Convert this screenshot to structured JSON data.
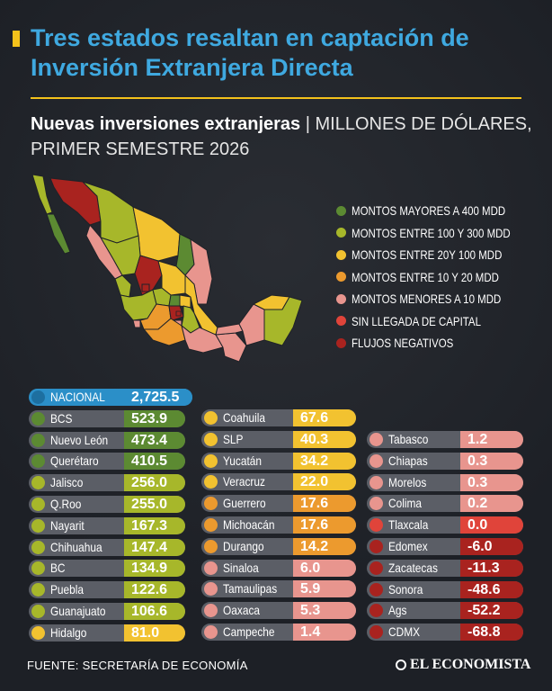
{
  "title": "Tres estados resaltan en captación de Inversión Extranjera Directa",
  "subtitle_bold": "Nuevas inversiones extranjeras",
  "subtitle_separator": " | ",
  "subtitle_light": "MILLONES DE DÓLARES, PRIMER SEMESTRE 2026",
  "legend": [
    {
      "label": "MONTOS MAYORES A 400 MDD",
      "color": "#5c8a32"
    },
    {
      "label": "MONTOS ENTRE 100 Y 300 MDD",
      "color": "#a7b72a"
    },
    {
      "label": "MONTOS ENTRE 20Y 100 MDD",
      "color": "#f2c230"
    },
    {
      "label": "MONTOS ENTRE 10 Y 20 MDD",
      "color": "#ec9a2e"
    },
    {
      "label": "MONTOS MENORES A 10 MDD",
      "color": "#e8958e"
    },
    {
      "label": "SIN LLEGADA DE CAPITAL",
      "color": "#e0443a"
    },
    {
      "label": "FLUJOS NEGATIVOS",
      "color": "#a9231f"
    }
  ],
  "chart_data": {
    "type": "table",
    "unit": "MILLONES DE DÓLARES",
    "national": {
      "name": "NACIONAL",
      "value": "2,725.5",
      "color": "#2b8fc8"
    },
    "rows": [
      {
        "name": "BCS",
        "value": "523.9",
        "color": "#5c8a32"
      },
      {
        "name": "Nuevo León",
        "value": "473.4",
        "color": "#5c8a32"
      },
      {
        "name": "Querétaro",
        "value": "410.5",
        "color": "#5c8a32"
      },
      {
        "name": "Jalisco",
        "value": "256.0",
        "color": "#a7b72a"
      },
      {
        "name": "Q.Roo",
        "value": "255.0",
        "color": "#a7b72a"
      },
      {
        "name": "Nayarit",
        "value": "167.3",
        "color": "#a7b72a"
      },
      {
        "name": "Chihuahua",
        "value": "147.4",
        "color": "#a7b72a"
      },
      {
        "name": "BC",
        "value": "134.9",
        "color": "#a7b72a"
      },
      {
        "name": "Puebla",
        "value": "122.6",
        "color": "#a7b72a"
      },
      {
        "name": "Guanajuato",
        "value": "106.6",
        "color": "#a7b72a"
      },
      {
        "name": "Hidalgo",
        "value": "81.0",
        "color": "#f2c230"
      },
      {
        "name": "Coahuila",
        "value": "67.6",
        "color": "#f2c230"
      },
      {
        "name": "SLP",
        "value": "40.3",
        "color": "#f2c230"
      },
      {
        "name": "Yucatán",
        "value": "34.2",
        "color": "#f2c230"
      },
      {
        "name": "Veracruz",
        "value": "22.0",
        "color": "#f2c230"
      },
      {
        "name": "Guerrero",
        "value": "17.6",
        "color": "#ec9a2e"
      },
      {
        "name": "Michoacán",
        "value": "17.6",
        "color": "#ec9a2e"
      },
      {
        "name": "Durango",
        "value": "14.2",
        "color": "#ec9a2e"
      },
      {
        "name": "Sinaloa",
        "value": "6.0",
        "color": "#e8958e"
      },
      {
        "name": "Tamaulipas",
        "value": "5.9",
        "color": "#e8958e"
      },
      {
        "name": "Oaxaca",
        "value": "5.3",
        "color": "#e8958e"
      },
      {
        "name": "Campeche",
        "value": "1.4",
        "color": "#e8958e"
      },
      {
        "name": "Tabasco",
        "value": "1.2",
        "color": "#e8958e"
      },
      {
        "name": "Chiapas",
        "value": "0.3",
        "color": "#e8958e"
      },
      {
        "name": "Morelos",
        "value": "0.3",
        "color": "#e8958e"
      },
      {
        "name": "Colima",
        "value": "0.2",
        "color": "#e8958e"
      },
      {
        "name": "Tlaxcala",
        "value": "0.0",
        "color": "#e0443a"
      },
      {
        "name": "Edomex",
        "value": "-6.0",
        "color": "#a9231f"
      },
      {
        "name": "Zacatecas",
        "value": "-11.3",
        "color": "#a9231f"
      },
      {
        "name": "Sonora",
        "value": "-48.6",
        "color": "#a9231f"
      },
      {
        "name": "Ags",
        "value": "-52.2",
        "color": "#a9231f"
      },
      {
        "name": "CDMX",
        "value": "-68.8",
        "color": "#a9231f"
      }
    ]
  },
  "source": "FUENTE: SECRETARÍA DE ECONOMÍA",
  "brand": "EL ECONOMISTA"
}
